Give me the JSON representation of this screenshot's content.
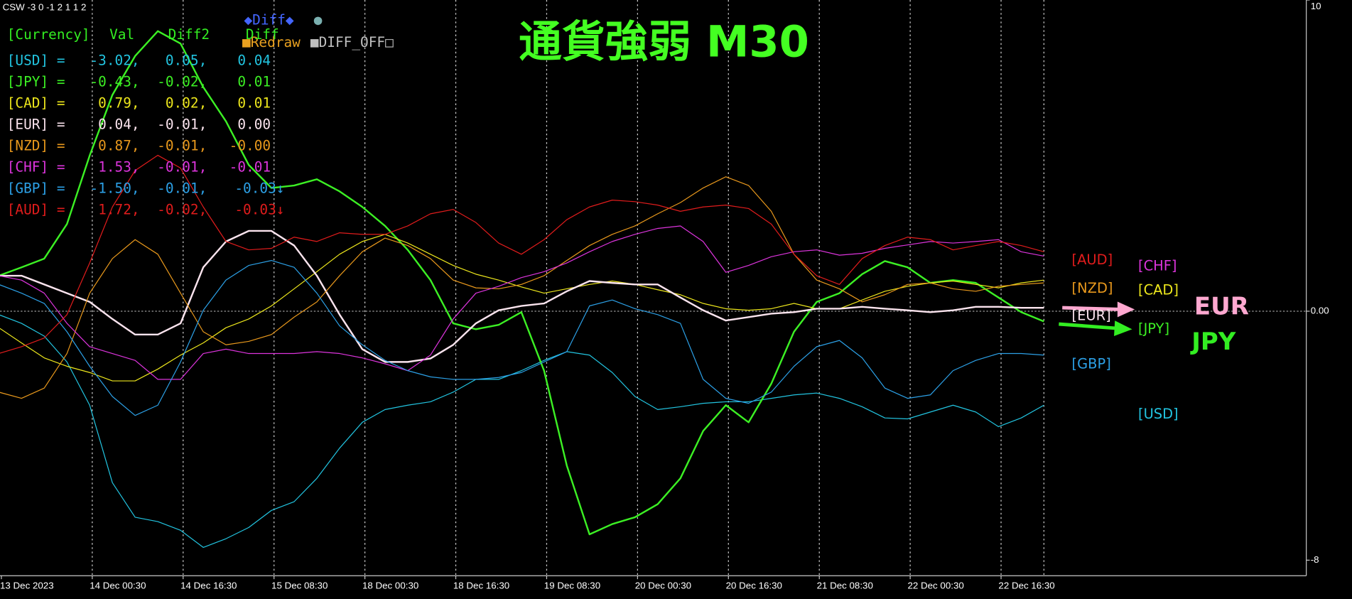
{
  "chart_data": {
    "type": "line",
    "indicator": "CSW -3 0 -1 2 1 1 2",
    "title": "通貨強弱 M30",
    "x": [
      "13 Dec 2023",
      null,
      null,
      null,
      "14 Dec 00:30",
      null,
      null,
      null,
      "14 Dec 16:30",
      null,
      null,
      null,
      "15 Dec 08:30",
      null,
      null,
      null,
      "18 Dec 00:30",
      null,
      null,
      null,
      "18 Dec 16:30",
      null,
      null,
      null,
      "19 Dec 08:30",
      null,
      null,
      null,
      "20 Dec 00:30",
      null,
      null,
      null,
      "20 Dec 16:30",
      null,
      null,
      null,
      "21 Dec 08:30",
      null,
      null,
      null,
      "22 Dec 00:30",
      null,
      null,
      null,
      "22 Dec 16:30",
      null,
      null
    ],
    "ylim": [
      -8.5,
      10
    ],
    "yticks": [
      -8,
      {
        "value": 0,
        "label": "0.00"
      },
      10
    ],
    "series": [
      {
        "name": "[USD]",
        "color": "#22c4e0",
        "line_width": 1,
        "values": [
          -0.11,
          -0.39,
          -0.8,
          -1.63,
          -3.02,
          -5.51,
          -6.62,
          -6.76,
          -7.04,
          -7.59,
          -7.31,
          -6.95,
          -6.4,
          -6.12,
          -5.37,
          -4.4,
          -3.57,
          -3.16,
          -3.02,
          -2.91,
          -2.6,
          -2.19,
          -2.19,
          -1.91,
          -1.58,
          -1.3,
          -1.41,
          -1.97,
          -2.74,
          -3.16,
          -3.07,
          -2.96,
          -2.91,
          -2.91,
          -2.8,
          -2.69,
          -2.63,
          -2.8,
          -3.07,
          -3.43,
          -3.46,
          -3.24,
          -3.02,
          -3.24,
          -3.71,
          -3.43,
          -3.02
        ]
      },
      {
        "name": "[JPY]",
        "color": "#3cf024",
        "line_width": 2,
        "values": [
          1.14,
          1.41,
          1.69,
          2.8,
          5.0,
          6.95,
          8.2,
          9.0,
          8.6,
          7.2,
          6.1,
          4.7,
          3.96,
          4.04,
          4.24,
          3.85,
          3.35,
          2.74,
          1.97,
          1.0,
          -0.39,
          -0.58,
          -0.44,
          -0.03,
          -1.91,
          -4.96,
          -7.17,
          -6.84,
          -6.62,
          -6.2,
          -5.37,
          -3.85,
          -3.02,
          -3.57,
          -2.33,
          -0.66,
          0.3,
          0.58,
          1.19,
          1.61,
          1.41,
          0.91,
          1.0,
          0.91,
          0.44,
          -0.03,
          -0.33
        ]
      },
      {
        "name": "[CAD]",
        "color": "#ece61c",
        "line_width": 1,
        "values": [
          -0.53,
          -1.02,
          -1.5,
          -1.77,
          -1.97,
          -2.24,
          -2.24,
          -1.86,
          -1.41,
          -1.02,
          -0.53,
          -0.25,
          0.17,
          0.72,
          1.27,
          1.83,
          2.24,
          2.47,
          2.19,
          1.83,
          1.47,
          1.19,
          1.0,
          0.78,
          0.58,
          0.72,
          0.86,
          0.97,
          0.86,
          0.69,
          0.53,
          0.25,
          0.08,
          0.03,
          0.08,
          0.25,
          0.08,
          0.08,
          0.36,
          0.64,
          0.8,
          0.91,
          0.97,
          0.86,
          0.75,
          0.91,
          1.0
        ]
      },
      {
        "name": "[EUR]",
        "color": "#fbe4ee",
        "line_width": 2,
        "values": [
          1.14,
          1.14,
          0.86,
          0.58,
          0.3,
          -0.25,
          -0.75,
          -0.75,
          -0.39,
          1.41,
          2.24,
          2.58,
          2.58,
          2.11,
          1.14,
          -0.11,
          -1.22,
          -1.63,
          -1.63,
          -1.52,
          -1.08,
          -0.39,
          0.03,
          0.17,
          0.25,
          0.64,
          0.97,
          0.91,
          0.86,
          0.86,
          0.44,
          0.03,
          -0.3,
          -0.19,
          -0.08,
          -0.03,
          0.08,
          0.08,
          0.14,
          0.08,
          0.03,
          -0.03,
          0.03,
          0.14,
          0.14,
          0.11,
          0.11
        ]
      },
      {
        "name": "[NZD]",
        "color": "#e8981c",
        "line_width": 1,
        "values": [
          -2.6,
          -2.8,
          -2.47,
          -1.36,
          0.58,
          1.69,
          2.3,
          1.83,
          0.58,
          -0.66,
          -1.08,
          -0.97,
          -0.75,
          -0.19,
          0.3,
          1.14,
          1.91,
          2.35,
          2.11,
          1.69,
          1.0,
          0.75,
          0.72,
          0.86,
          1.14,
          1.63,
          2.11,
          2.47,
          2.74,
          3.13,
          3.49,
          3.96,
          4.32,
          4.04,
          3.21,
          1.83,
          1.0,
          0.72,
          0.3,
          0.53,
          0.86,
          0.91,
          0.72,
          0.64,
          0.8,
          0.86,
          0.91
        ]
      },
      {
        "name": "[CHF]",
        "color": "#dc34dc",
        "line_width": 1,
        "values": [
          1.14,
          1.0,
          0.58,
          -0.39,
          -1.14,
          -1.36,
          -1.58,
          -2.19,
          -2.19,
          -1.36,
          -1.22,
          -1.36,
          -1.36,
          -1.36,
          -1.3,
          -1.36,
          -1.5,
          -1.69,
          -1.91,
          -1.41,
          -0.25,
          0.58,
          0.8,
          1.08,
          1.27,
          1.55,
          1.91,
          2.24,
          2.47,
          2.66,
          2.74,
          2.24,
          1.25,
          1.47,
          1.75,
          1.91,
          1.97,
          1.8,
          1.86,
          2.02,
          2.13,
          2.24,
          2.19,
          2.24,
          2.3,
          1.91,
          1.77
        ]
      },
      {
        "name": "[GBP]",
        "color": "#2ca0e6",
        "line_width": 1,
        "values": [
          0.86,
          0.58,
          0.25,
          -0.66,
          -1.77,
          -2.74,
          -3.35,
          -3.02,
          -1.63,
          0.03,
          1.0,
          1.47,
          1.63,
          1.41,
          0.58,
          -0.47,
          -1.08,
          -1.58,
          -1.91,
          -2.11,
          -2.19,
          -2.19,
          -2.13,
          -1.97,
          -1.63,
          -1.3,
          0.17,
          0.36,
          0.08,
          -0.11,
          -0.39,
          -2.19,
          -2.8,
          -2.96,
          -2.6,
          -1.77,
          -1.14,
          -0.94,
          -1.5,
          -2.47,
          -2.8,
          -2.69,
          -1.91,
          -1.58,
          -1.36,
          -1.36,
          -1.41
        ]
      },
      {
        "name": "[AUD]",
        "color": "#e01c1c",
        "line_width": 1,
        "values": [
          -1.36,
          -1.14,
          -0.86,
          -0.11,
          1.55,
          3.35,
          4.52,
          5.01,
          4.6,
          3.35,
          2.24,
          1.97,
          2.02,
          2.38,
          2.24,
          2.52,
          2.47,
          2.47,
          2.74,
          3.13,
          3.27,
          2.85,
          2.19,
          1.83,
          2.3,
          2.94,
          3.35,
          3.57,
          3.52,
          3.41,
          3.21,
          3.35,
          3.41,
          3.3,
          2.8,
          1.83,
          1.14,
          0.86,
          1.69,
          2.11,
          2.38,
          2.3,
          1.97,
          2.11,
          2.24,
          2.11,
          1.91
        ]
      }
    ],
    "info_panel": {
      "header": [
        "[Currency]",
        "Val",
        "Diff2",
        "Diff"
      ],
      "rows": [
        [
          "[USD] =",
          "-3.02,",
          "0.05,",
          "0.04"
        ],
        [
          "[JPY] =",
          "-0.43,",
          "-0.02,",
          "0.01"
        ],
        [
          "[CAD] =",
          "0.79,",
          "0.02,",
          "0.01"
        ],
        [
          "[EUR] =",
          "0.04,",
          "-0.01,",
          "0.00"
        ],
        [
          "[NZD] =",
          "0.87,",
          "-0.01,",
          "-0.00"
        ],
        [
          "[CHF] =",
          "1.53,",
          "-0.01,",
          "-0.01"
        ],
        [
          "[GBP] =",
          "-1.50,",
          "-0.01,",
          "-0.03↓"
        ],
        [
          "[AUD] =",
          "1.72,",
          "-0.02,",
          "-0.03↓"
        ]
      ]
    },
    "buttons": [
      "◆Diff◆",
      "●",
      "■Redraw",
      "■DIFF_OFF□"
    ],
    "annotations": [
      "EUR",
      "JPY"
    ]
  }
}
